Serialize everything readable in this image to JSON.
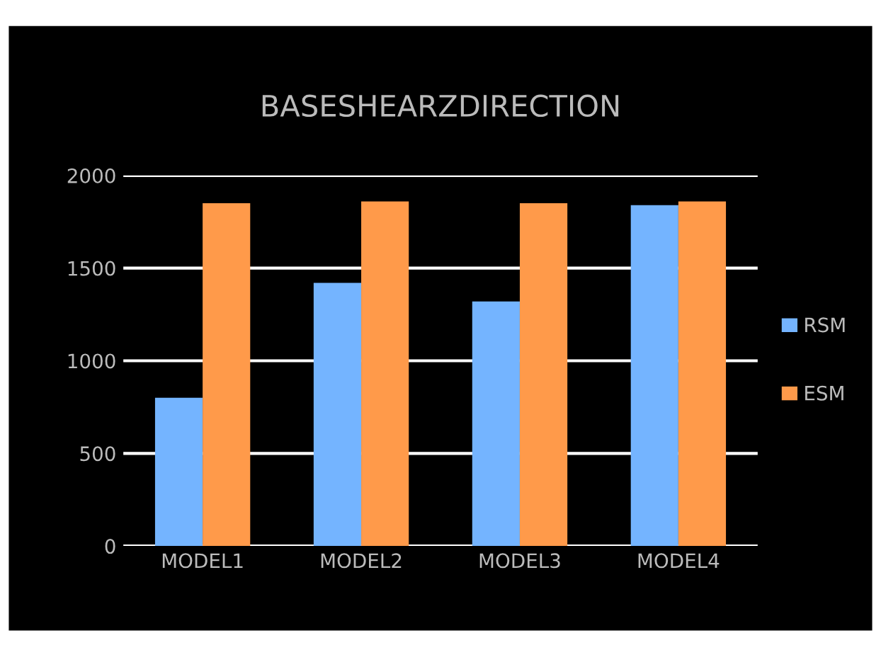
{
  "chart_data": {
    "type": "bar",
    "title": "BASESHEARZDIRECTION",
    "categories": [
      "MODEL1",
      "MODEL2",
      "MODEL3",
      "MODEL4"
    ],
    "series": [
      {
        "name": "RSM",
        "color": "#74b4ff",
        "values": [
          800,
          1420,
          1320,
          1840
        ]
      },
      {
        "name": "ESM",
        "color": "#ff9a4a",
        "values": [
          1850,
          1860,
          1850,
          1860
        ]
      }
    ],
    "ylim": [
      0,
      2000
    ],
    "yticks": [
      0,
      500,
      1000,
      1500,
      2000
    ],
    "grid": "y",
    "legend": "right"
  }
}
